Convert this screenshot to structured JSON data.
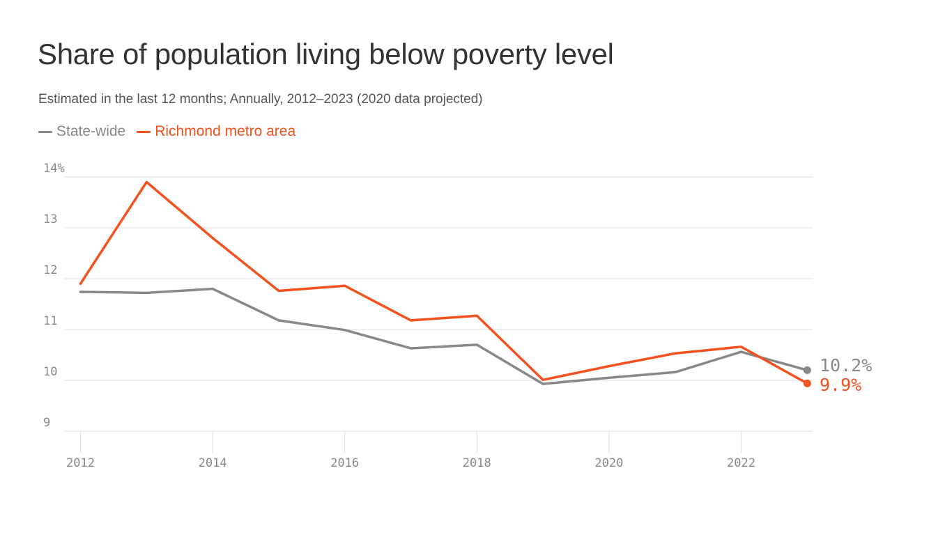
{
  "chart_data": {
    "type": "line",
    "title": "Share of population living below poverty level",
    "subtitle": "Estimated in the last 12 months; Annually, 2012–2023 (2020 data projected)",
    "x": [
      2012,
      2013,
      2014,
      2015,
      2016,
      2017,
      2018,
      2019,
      2020,
      2021,
      2022,
      2023
    ],
    "x_ticks": [
      "2012",
      "2014",
      "2016",
      "2018",
      "2020",
      "2022"
    ],
    "y_ticks": [
      "9",
      "10",
      "11",
      "12",
      "13",
      "14%"
    ],
    "ylim": [
      9,
      14
    ],
    "grid": true,
    "legend_position": "top-left",
    "series": [
      {
        "name": "State-wide",
        "color": "#888888",
        "values": [
          11.74,
          11.72,
          11.8,
          11.18,
          10.99,
          10.63,
          10.7,
          9.93,
          10.05,
          10.16,
          10.56,
          10.2
        ],
        "end_label": "10.2%"
      },
      {
        "name": "Richmond metro area",
        "color": "#f5511e",
        "values": [
          11.9,
          13.9,
          12.8,
          11.76,
          11.86,
          11.18,
          11.27,
          10.01,
          10.28,
          10.53,
          10.66,
          9.94
        ],
        "end_label": "9.9%"
      }
    ]
  }
}
